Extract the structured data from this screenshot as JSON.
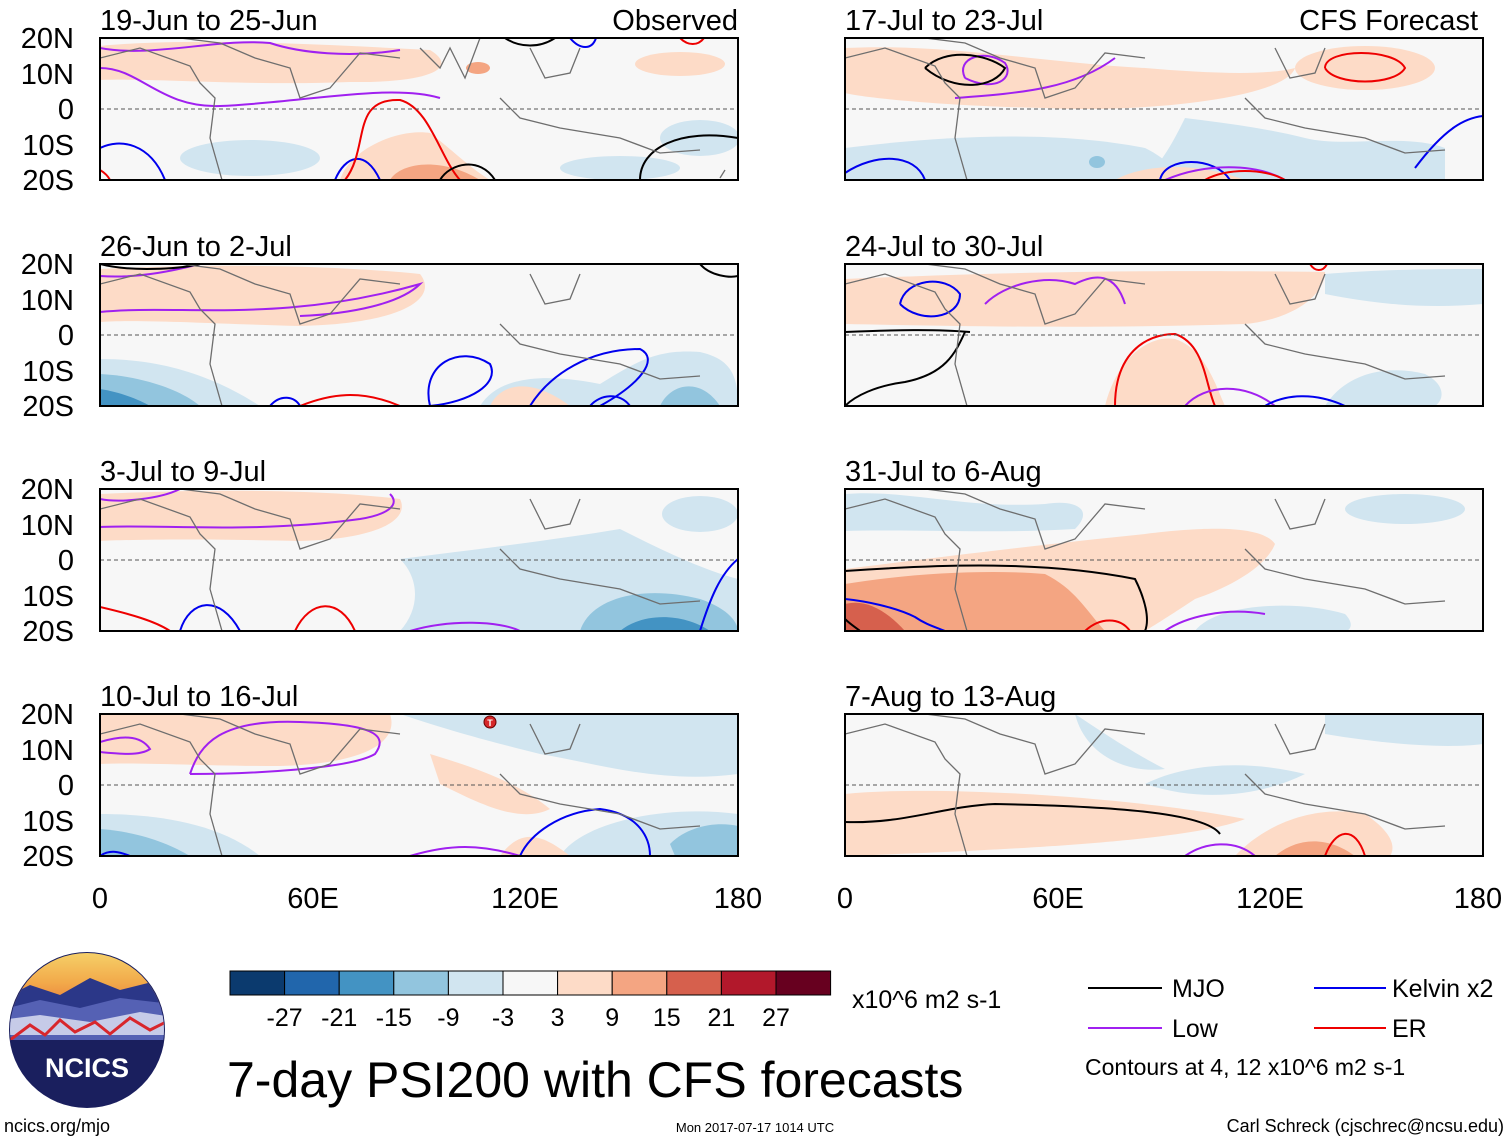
{
  "title": "7-day PSI200 with CFS forecasts",
  "observed_label": "Observed",
  "forecast_label": "CFS Forecast",
  "lat_labels": [
    "20N",
    "10N",
    "0",
    "10S",
    "20S"
  ],
  "lon_labels": [
    "0",
    "60E",
    "120E",
    "180"
  ],
  "panels_left": [
    {
      "title": "19-Jun to 25-Jun"
    },
    {
      "title": "26-Jun to 2-Jul"
    },
    {
      "title": "3-Jul to 9-Jul"
    },
    {
      "title": "10-Jul to 16-Jul"
    }
  ],
  "panels_right": [
    {
      "title": "17-Jul to 23-Jul"
    },
    {
      "title": "24-Jul to 30-Jul"
    },
    {
      "title": "31-Jul to 6-Aug"
    },
    {
      "title": "7-Aug to 13-Aug"
    }
  ],
  "colorbar": {
    "labels": [
      "-27",
      "-21",
      "-15",
      "-9",
      "-3",
      "3",
      "9",
      "15",
      "21",
      "27"
    ],
    "colors": [
      "#0b3a6e",
      "#2166ac",
      "#4393c3",
      "#92c5de",
      "#d1e5f0",
      "#f7f7f7",
      "#fddbc7",
      "#f4a582",
      "#d6604d",
      "#b2182b",
      "#67001f"
    ],
    "units": "x10^6 m2 s-1"
  },
  "legend": {
    "items": [
      {
        "label": "MJO",
        "color": "#000000"
      },
      {
        "label": "Kelvin x2",
        "color": "#0000ee"
      },
      {
        "label": "Low",
        "color": "#a020f0"
      },
      {
        "label": "ER",
        "color": "#ee0000"
      }
    ],
    "note": "Contours at 4, 12 x10^6 m2 s-1"
  },
  "logo_text": "NCICS",
  "footer": {
    "left": "ncics.org/mjo",
    "center": "Mon 2017-07-17 1014 UTC",
    "right": "Carl Schreck (cjschrec@ncsu.edu)"
  }
}
